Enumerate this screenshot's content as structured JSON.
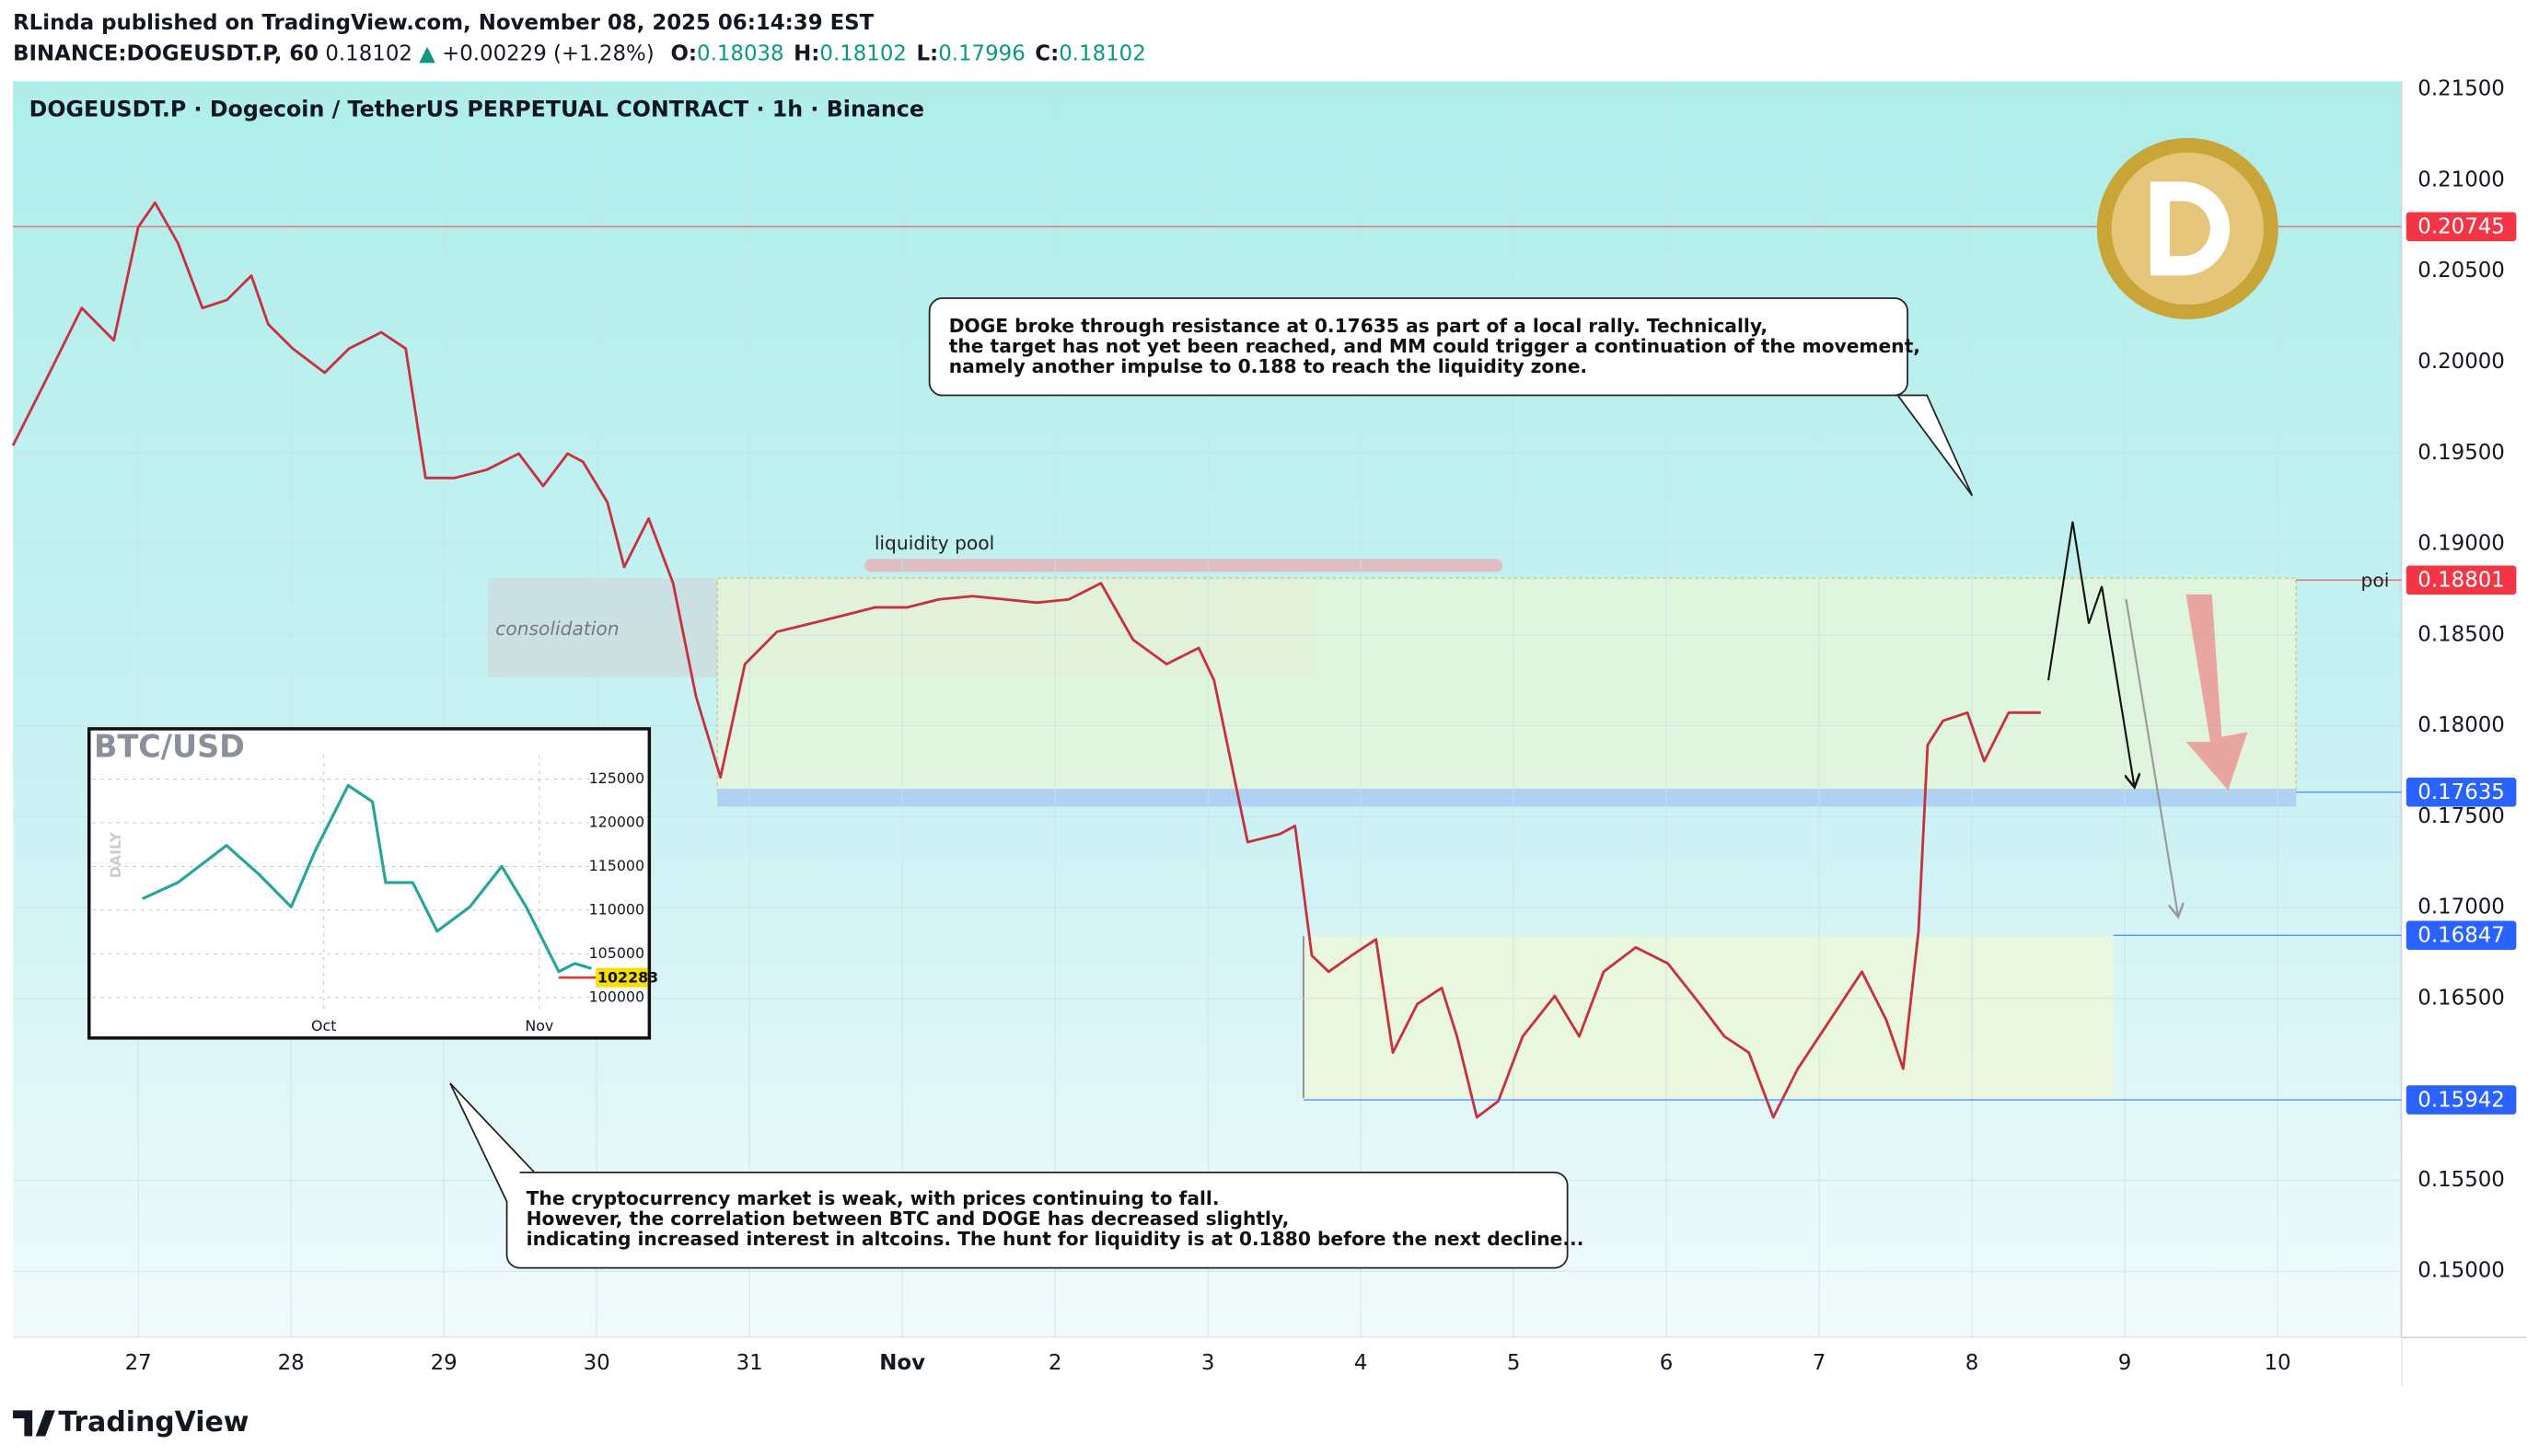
{
  "header": {
    "author_line": "RLinda published on TradingView.com, November 08, 2025 06:14:39 EST",
    "symbol": "BINANCE:DOGEUSDT.P, 60",
    "last": "0.18102",
    "arrow": "▲",
    "change": "+0.00229 (+1.28%)",
    "quote": [
      {
        "label": "O:",
        "value": "0.18038"
      },
      {
        "label": "H:",
        "value": "0.18102"
      },
      {
        "label": "L:",
        "value": "0.17996"
      },
      {
        "label": "C:",
        "value": "0.18102"
      }
    ],
    "footer_brand": "TradingView"
  },
  "chart_data": [
    {
      "type": "line",
      "title": "DOGEUSDT.P · Dogecoin / TetherUS PERPETUAL CONTRACT · 1h · Binance",
      "series": [
        {
          "color": "#c8303f",
          "x": [
            -0.82,
            -0.58,
            -0.37,
            -0.16,
            0.0,
            0.11,
            0.26,
            0.42,
            0.58,
            0.74,
            0.85,
            1.01,
            1.22,
            1.38,
            1.59,
            1.75,
            1.88,
            2.07,
            2.28,
            2.49,
            2.65,
            2.81,
            2.91,
            3.07,
            3.18,
            3.34,
            3.5,
            3.65,
            3.81,
            3.97,
            4.18,
            4.4,
            4.61,
            4.82,
            5.03,
            5.24,
            5.46,
            5.67,
            5.88,
            6.09,
            6.3,
            6.51,
            6.73,
            6.94,
            7.04,
            7.15,
            7.26,
            7.47,
            7.57,
            7.68,
            7.79,
            7.94,
            8.1,
            8.21,
            8.37,
            8.53,
            8.63,
            8.76,
            8.9,
            9.06,
            9.27,
            9.43,
            9.59,
            9.8,
            10.01,
            10.22,
            10.38,
            10.54,
            10.7,
            10.86,
            11.07,
            11.28,
            11.44,
            11.55,
            11.65,
            11.71,
            11.81,
            11.97,
            12.08,
            12.24,
            12.45
          ],
          "values": [
            0.19541,
            0.19942,
            0.20298,
            0.2012,
            0.20743,
            0.20877,
            0.20654,
            0.20298,
            0.20342,
            0.20476,
            0.20209,
            0.20075,
            0.19942,
            0.20075,
            0.20164,
            0.20075,
            0.19363,
            0.19363,
            0.19408,
            0.19497,
            0.19319,
            0.19497,
            0.19452,
            0.19229,
            0.18873,
            0.1914,
            0.18784,
            0.18161,
            0.17716,
            0.18339,
            0.18517,
            0.18562,
            0.18606,
            0.18651,
            0.18651,
            0.18695,
            0.18713,
            0.18695,
            0.18677,
            0.18695,
            0.18784,
            0.18473,
            0.18339,
            0.18428,
            0.1825,
            0.17805,
            0.1736,
            0.17404,
            0.17449,
            0.16736,
            0.16647,
            0.16736,
            0.16825,
            0.16202,
            0.16469,
            0.16558,
            0.16291,
            0.15846,
            0.15935,
            0.16291,
            0.16514,
            0.16291,
            0.16647,
            0.16781,
            0.16692,
            0.16469,
            0.16291,
            0.16202,
            0.15846,
            0.16113,
            0.1638,
            0.16647,
            0.1638,
            0.16113,
            0.1687,
            0.17894,
            0.18027,
            0.18072,
            0.17805,
            0.18072,
            0.18072
          ]
        }
      ],
      "xlim": [
        -0.82,
        14.81
      ],
      "ylim": [
        0.14635,
        0.21545
      ],
      "xticks": [
        {
          "value": 0,
          "label": "27"
        },
        {
          "value": 1,
          "label": "28"
        },
        {
          "value": 2,
          "label": "29"
        },
        {
          "value": 3,
          "label": "30"
        },
        {
          "value": 4,
          "label": "31"
        },
        {
          "value": 5,
          "label": "Nov"
        },
        {
          "value": 6,
          "label": "2"
        },
        {
          "value": 7,
          "label": "3"
        },
        {
          "value": 8,
          "label": "4"
        },
        {
          "value": 9,
          "label": "5"
        },
        {
          "value": 10,
          "label": "6"
        },
        {
          "value": 11,
          "label": "7"
        },
        {
          "value": 12,
          "label": "8"
        },
        {
          "value": 13,
          "label": "9"
        },
        {
          "value": 14,
          "label": "10"
        }
      ],
      "yticks": [
        {
          "value": 0.215,
          "label": "0.21500"
        },
        {
          "value": 0.21,
          "label": "0.21000"
        },
        {
          "value": 0.205,
          "label": "0.20500"
        },
        {
          "value": 0.2,
          "label": "0.20000"
        },
        {
          "value": 0.195,
          "label": "0.19500"
        },
        {
          "value": 0.19,
          "label": "0.19000"
        },
        {
          "value": 0.185,
          "label": "0.18500"
        },
        {
          "value": 0.18,
          "label": "0.18000"
        },
        {
          "value": 0.175,
          "label": "0.17500"
        },
        {
          "value": 0.17,
          "label": "0.17000"
        },
        {
          "value": 0.165,
          "label": "0.16500"
        },
        {
          "value": 0.155,
          "label": "0.15500"
        },
        {
          "value": 0.15,
          "label": "0.15000"
        }
      ],
      "levels": [
        {
          "value": 0.20745,
          "color": "#f23645"
        },
        {
          "value": 0.18801,
          "color": "#f23645"
        },
        {
          "value": 0.17635,
          "color": "#2962ff"
        },
        {
          "value": 0.16847,
          "color": "#2962ff"
        },
        {
          "value": 0.15942,
          "color": "#2962ff"
        }
      ],
      "annotations": {
        "liquidity_pool": "liquidity pool",
        "consolidation": "consolidation",
        "poi": "poi",
        "callout_top": [
          "DOGE broke through resistance at 0.17635 as part of a local rally. Technically,",
          "the target has not yet been reached, and MM could trigger a continuation of the movement,",
          "namely another impulse to 0.188 to reach the liquidity zone."
        ],
        "callout_bottom": [
          "The cryptocurrency market is weak, with prices continuing to fall.",
          "However, the correlation between BTC and DOGE has decreased slightly,",
          "indicating increased interest in altcoins. The hunt for liquidity is at 0.1880 before the next decline..."
        ]
      }
    },
    {
      "type": "line",
      "title": "BTC/USD",
      "side_label": "DAILY",
      "series": [
        {
          "color": "#26a69a",
          "x": [
            -26.1,
            -21.0,
            -14.0,
            -9.3,
            -4.7,
            -1.2,
            3.5,
            7.0,
            8.9,
            12.8,
            16.3,
            21.0,
            25.6,
            29.1,
            33.8,
            36.1,
            38.5
          ],
          "values": [
            111300,
            113150,
            117400,
            114070,
            110370,
            116850,
            124260,
            122400,
            113150,
            113150,
            107590,
            110370,
            115000,
            110370,
            102960,
            103890,
            103330
          ]
        }
      ],
      "xlim": [
        -33.3,
        39.6
      ],
      "ylim": [
        98330,
        127780
      ],
      "xticks": [
        {
          "value": 0,
          "label": "Oct"
        },
        {
          "value": 31,
          "label": "Nov"
        }
      ],
      "yticks": [
        125000,
        120000,
        115000,
        110000,
        105000,
        100000
      ],
      "last_label": 102283
    }
  ]
}
